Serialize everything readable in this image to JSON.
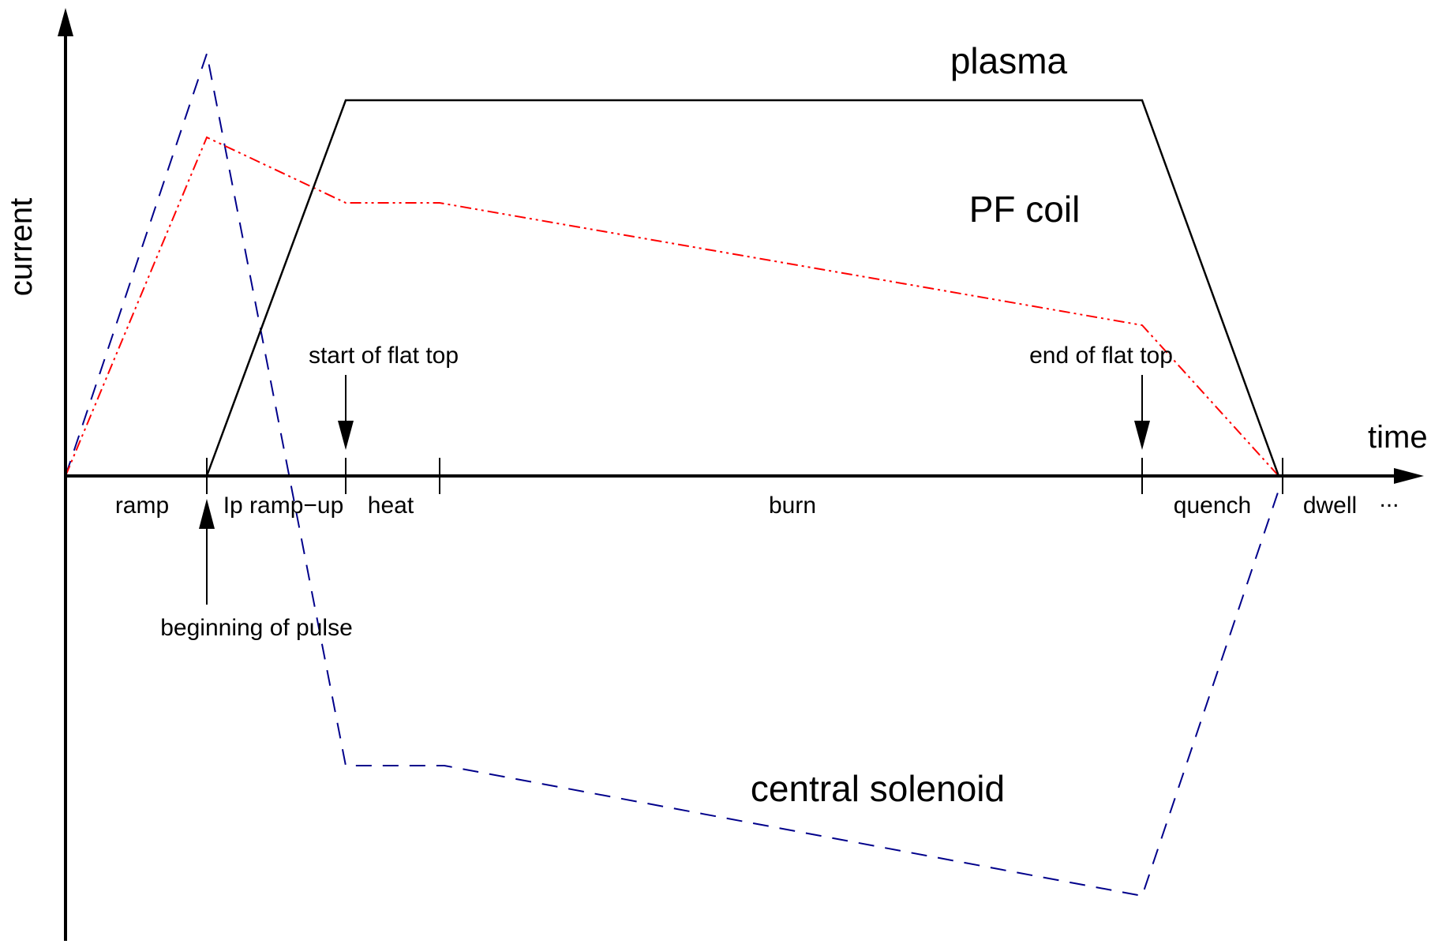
{
  "axes": {
    "x_label": "time",
    "y_label": "current",
    "continuation": "..."
  },
  "phases": [
    {
      "id": "ramp",
      "label": "ramp"
    },
    {
      "id": "ip-ramp-up",
      "label": "Ip ramp−up"
    },
    {
      "id": "heat",
      "label": "heat"
    },
    {
      "id": "burn",
      "label": "burn"
    },
    {
      "id": "quench",
      "label": "quench"
    },
    {
      "id": "dwell",
      "label": "dwell"
    }
  ],
  "events": {
    "beginning": "beginning of pulse",
    "start_flat_top": "start of flat top",
    "end_flat_top": "end of flat top"
  },
  "curves": {
    "plasma": {
      "label": "plasma",
      "color": "#000000",
      "style": "solid"
    },
    "pf_coil": {
      "label": "PF coil",
      "color": "#ff0000",
      "style": "dash-dot-dot"
    },
    "central_solenoid": {
      "label": "central solenoid",
      "color": "#00008b",
      "style": "dashed"
    }
  }
}
